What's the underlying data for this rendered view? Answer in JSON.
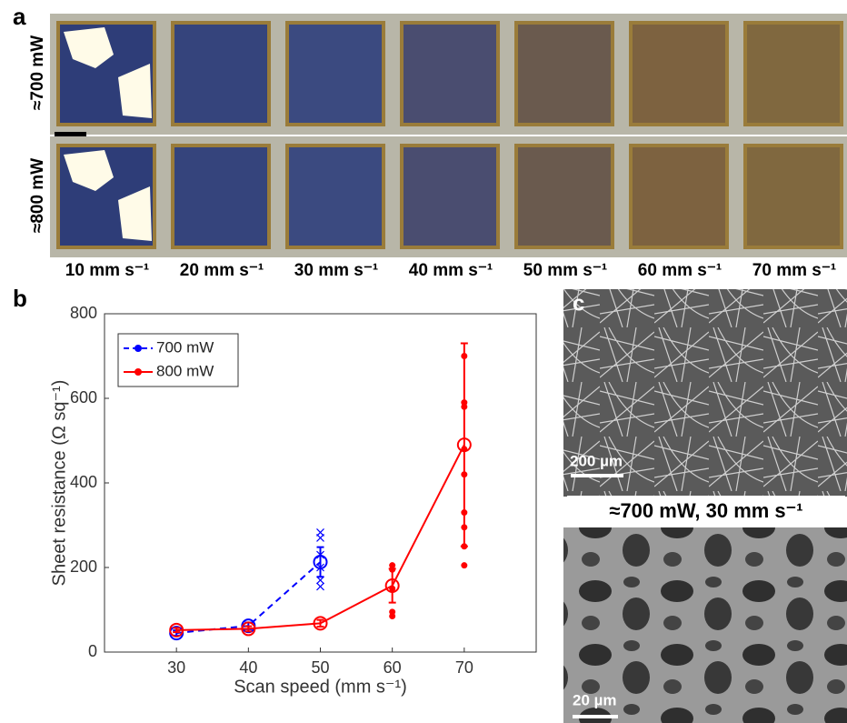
{
  "panel_a": {
    "label": "a",
    "row_labels": [
      "≈700 mW",
      "≈800 mW"
    ],
    "column_labels": [
      "10 mm s⁻¹",
      "20 mm s⁻¹",
      "30 mm s⁻¹",
      "40 mm s⁻¹",
      "50 mm s⁻¹",
      "60 mm s⁻¹",
      "70 mm s⁻¹"
    ]
  },
  "chart_data": {
    "type": "line",
    "panel_label": "b",
    "xlabel": "Scan speed (mm s⁻¹)",
    "ylabel": "Sheet resistance (Ω sq⁻¹)",
    "xlim": [
      20,
      80
    ],
    "xticks": [
      30,
      40,
      50,
      60,
      70
    ],
    "ylim": [
      0,
      800
    ],
    "yticks": [
      0,
      200,
      400,
      600,
      800
    ],
    "legend": "upper left",
    "series": [
      {
        "name": "700 mW",
        "color": "#0000ff",
        "dashed": true,
        "marker": "x",
        "x": [
          30,
          40,
          50
        ],
        "values": [
          45,
          62,
          213
        ],
        "errors": [
          6,
          8,
          35
        ],
        "samples": {
          "x": [
            50,
            50,
            50,
            50,
            50,
            50
          ],
          "values": [
            155,
            170,
            200,
            230,
            270,
            283
          ]
        }
      },
      {
        "name": "800 mW",
        "color": "#ff0000",
        "dashed": false,
        "marker": "dot",
        "x": [
          30,
          40,
          50,
          60,
          70
        ],
        "values": [
          52,
          55,
          68,
          157,
          490
        ],
        "errors": [
          5,
          6,
          8,
          40,
          240
        ],
        "samples": {
          "x": [
            60,
            60,
            60,
            60,
            60,
            70,
            70,
            70,
            70,
            70,
            70,
            70,
            70,
            70
          ],
          "values": [
            85,
            95,
            150,
            195,
            205,
            205,
            250,
            295,
            330,
            420,
            480,
            580,
            590,
            700
          ]
        }
      }
    ]
  },
  "panel_c": {
    "label": "c",
    "top_scale": "200 µm",
    "caption": "≈700 mW, 30 mm s⁻¹",
    "bottom_scale": "20 µm"
  }
}
